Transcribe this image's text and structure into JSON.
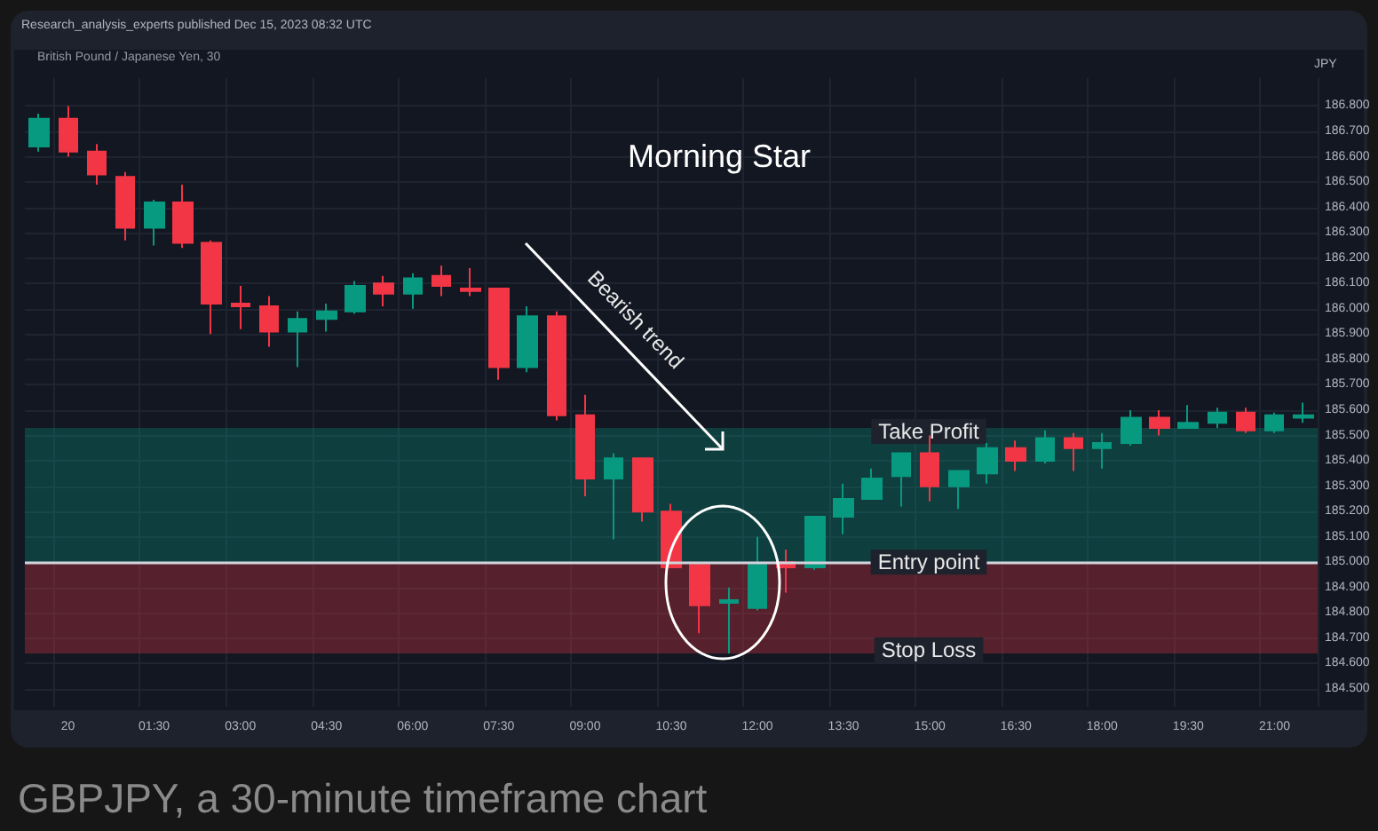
{
  "chart_data": {
    "type": "candlestick",
    "title": "Morning Star",
    "subtitle": "British Pound / Japanese Yen, 30",
    "ylabel": "JPY",
    "annotations": [
      "Research_analysis_experts published Dec 15, 2023 08:32 UTC",
      "Bearish trend",
      "GBPJPY, a 30-minute timeframe chart"
    ],
    "categories": [
      null,
      "20",
      null,
      null,
      "01:30",
      null,
      null,
      "03:00",
      null,
      null,
      "04:30",
      null,
      null,
      "06:00",
      null,
      null,
      "07:30",
      null,
      null,
      "09:00",
      null,
      null,
      "10:30",
      null,
      null,
      "12:00",
      null,
      null,
      "13:30",
      null,
      null,
      "15:00",
      null,
      null,
      "16:30",
      null,
      null,
      "18:00",
      null,
      null,
      "19:30",
      null,
      null,
      "21:00",
      null
    ],
    "ohlc": [
      [
        186.64,
        186.77,
        186.62,
        186.75
      ],
      [
        186.75,
        186.8,
        186.6,
        186.62
      ],
      [
        186.62,
        186.65,
        186.49,
        186.53
      ],
      [
        186.52,
        186.54,
        186.27,
        186.32
      ],
      [
        186.32,
        186.43,
        186.25,
        186.42
      ],
      [
        186.42,
        186.49,
        186.24,
        186.26
      ],
      [
        186.26,
        186.27,
        185.9,
        186.02
      ],
      [
        186.02,
        186.09,
        185.92,
        186.01
      ],
      [
        186.01,
        186.05,
        185.85,
        185.91
      ],
      [
        185.91,
        185.99,
        185.77,
        185.96
      ],
      [
        185.96,
        186.02,
        185.91,
        185.99
      ],
      [
        185.99,
        186.11,
        185.98,
        186.09
      ],
      [
        186.1,
        186.13,
        186.01,
        186.06
      ],
      [
        186.06,
        186.14,
        186.0,
        186.12
      ],
      [
        186.13,
        186.17,
        186.05,
        186.09
      ],
      [
        186.08,
        186.16,
        186.05,
        186.07
      ],
      [
        186.08,
        186.08,
        185.72,
        185.77
      ],
      [
        185.77,
        186.01,
        185.75,
        185.97
      ],
      [
        185.97,
        185.99,
        185.56,
        185.58
      ],
      [
        185.58,
        185.66,
        185.26,
        185.33
      ],
      [
        185.33,
        185.43,
        185.09,
        185.41
      ],
      [
        185.41,
        185.41,
        185.16,
        185.2
      ],
      [
        185.2,
        185.23,
        184.98,
        184.98
      ],
      [
        184.99,
        185.0,
        184.72,
        184.83
      ],
      [
        184.84,
        184.9,
        184.64,
        184.85
      ],
      [
        184.82,
        185.1,
        184.81,
        184.99
      ],
      [
        185.0,
        185.05,
        184.88,
        184.98
      ],
      [
        184.98,
        185.18,
        184.97,
        185.18
      ],
      [
        185.18,
        185.31,
        185.11,
        185.25
      ],
      [
        185.25,
        185.37,
        185.25,
        185.33
      ],
      [
        185.34,
        185.43,
        185.22,
        185.43
      ],
      [
        185.43,
        185.5,
        185.24,
        185.3
      ],
      [
        185.3,
        185.36,
        185.21,
        185.36
      ],
      [
        185.35,
        185.47,
        185.31,
        185.45
      ],
      [
        185.45,
        185.48,
        185.36,
        185.4
      ],
      [
        185.4,
        185.52,
        185.39,
        185.49
      ],
      [
        185.49,
        185.51,
        185.36,
        185.45
      ],
      [
        185.45,
        185.51,
        185.37,
        185.47
      ],
      [
        185.47,
        185.6,
        185.46,
        185.57
      ],
      [
        185.57,
        185.6,
        185.5,
        185.53
      ],
      [
        185.53,
        185.62,
        185.53,
        185.55
      ],
      [
        185.55,
        185.61,
        185.53,
        185.59
      ],
      [
        185.59,
        185.61,
        185.51,
        185.52
      ],
      [
        185.52,
        185.59,
        185.51,
        185.58
      ],
      [
        185.57,
        185.63,
        185.55,
        185.58
      ]
    ],
    "ylim": [
      184.43,
      186.91
    ],
    "yticks": [
      {
        "value": 184.5,
        "label": "184.500"
      },
      {
        "value": 184.6,
        "label": "184.600"
      },
      {
        "value": 184.7,
        "label": "184.700"
      },
      {
        "value": 184.8,
        "label": "184.800"
      },
      {
        "value": 184.9,
        "label": "184.900"
      },
      {
        "value": 185.0,
        "label": "185.000"
      },
      {
        "value": 185.1,
        "label": "185.100"
      },
      {
        "value": 185.2,
        "label": "185.200"
      },
      {
        "value": 185.3,
        "label": "185.300"
      },
      {
        "value": 185.4,
        "label": "185.400"
      },
      {
        "value": 185.5,
        "label": "185.500"
      },
      {
        "value": 185.6,
        "label": "185.600"
      },
      {
        "value": 185.7,
        "label": "185.700"
      },
      {
        "value": 185.8,
        "label": "185.800"
      },
      {
        "value": 185.9,
        "label": "185.900"
      },
      {
        "value": 186.0,
        "label": "186.000"
      },
      {
        "value": 186.1,
        "label": "186.100"
      },
      {
        "value": 186.2,
        "label": "186.200"
      },
      {
        "value": 186.3,
        "label": "186.300"
      },
      {
        "value": 186.4,
        "label": "186.400"
      },
      {
        "value": 186.5,
        "label": "186.500"
      },
      {
        "value": 186.6,
        "label": "186.600"
      },
      {
        "value": 186.7,
        "label": "186.700"
      },
      {
        "value": 186.8,
        "label": "186.800"
      }
    ],
    "bands": [
      {
        "axis": "y",
        "from": 185.0,
        "to": 185.53,
        "label": "Take Profit",
        "color": "#089981"
      },
      {
        "axis": "y",
        "from": 184.64,
        "to": 185.0,
        "label": "Stop Loss",
        "color": "#f23645"
      }
    ],
    "ref_lines": [
      {
        "axis": "y",
        "value": 185.0,
        "label": "Entry point",
        "color": "#d1d4dc"
      }
    ],
    "grid": true
  }
}
